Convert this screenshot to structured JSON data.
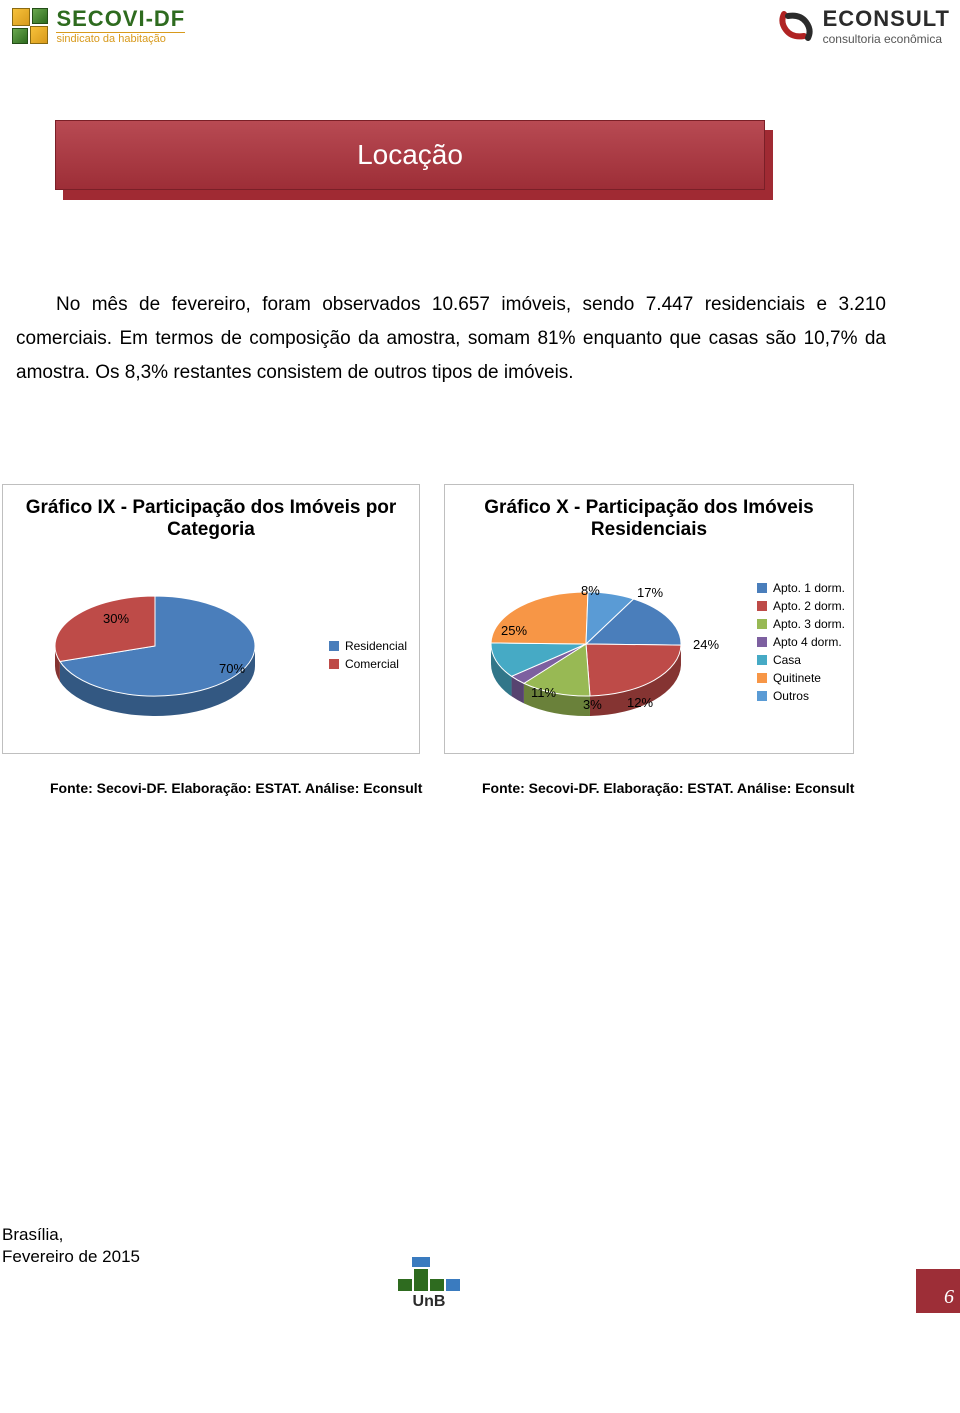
{
  "header": {
    "secovi_name": "SECOVI-DF",
    "secovi_tag": "sindicato da habitação",
    "econsult_name": "ECONSULT",
    "econsult_tag": "consultoria econômica"
  },
  "banner": {
    "title": "Locação",
    "bg_gradient_top": "#b84a53",
    "bg_gradient_bottom": "#9d2e37",
    "shadow_color": "#a02a33",
    "title_color": "#ffffff",
    "title_fontsize": 28
  },
  "paragraph": {
    "text": "No mês de fevereiro, foram observados 10.657 imóveis, sendo 7.447 residenciais e 3.210 comerciais. Em termos de composição da amostra, somam 81% enquanto que casas são 10,7% da amostra. Os 8,3% restantes consistem de outros tipos de imóveis.",
    "fontsize": 19,
    "line_height": 34
  },
  "chart_ix": {
    "type": "pie",
    "title": "Gráfico IX - Participação dos Imóveis por Categoria",
    "title_fontsize": 19,
    "background_color": "#ffffff",
    "border_color": "#bfbfbf",
    "slices": [
      {
        "label": "Residencial",
        "value": 70,
        "display": "70%",
        "color": "#4a7ebb"
      },
      {
        "label": "Comercial",
        "value": 30,
        "display": "30%",
        "color": "#be4b48"
      }
    ],
    "legend_fontsize": 12,
    "label_fontsize": 13
  },
  "chart_x": {
    "type": "pie",
    "title": "Gráfico X - Participação dos Imóveis Residenciais",
    "title_fontsize": 19,
    "background_color": "#ffffff",
    "border_color": "#bfbfbf",
    "slices": [
      {
        "label": "Apto. 1 dorm.",
        "value": 17,
        "display": "17%",
        "color": "#4a7ebb"
      },
      {
        "label": "Apto. 2 dorm.",
        "value": 24,
        "display": "24%",
        "color": "#be4b48"
      },
      {
        "label": "Apto. 3 dorm.",
        "value": 12,
        "display": "12%",
        "color": "#98b954"
      },
      {
        "label": "Apto 4 dorm.",
        "value": 3,
        "display": "3%",
        "color": "#7d60a0"
      },
      {
        "label": "Casa",
        "value": 11,
        "display": "11%",
        "color": "#46aac5"
      },
      {
        "label": "Quitinete",
        "value": 25,
        "display": "25%",
        "color": "#f79646"
      },
      {
        "label": "Outros",
        "value": 8,
        "display": "8%",
        "color": "#5a9bd5"
      }
    ],
    "legend_fontsize": 12,
    "label_fontsize": 13
  },
  "sources": {
    "left": "Fonte: Secovi-DF. Elaboração: ESTAT. Análise: Econsult",
    "right": "Fonte: Secovi-DF. Elaboração: ESTAT. Análise: Econsult",
    "fontsize": 14
  },
  "footer": {
    "city": "Brasília,",
    "date": "Fevereiro de 2015",
    "unb_label": "UnB",
    "page_number": "6",
    "page_box_color": "#9d2e37"
  }
}
